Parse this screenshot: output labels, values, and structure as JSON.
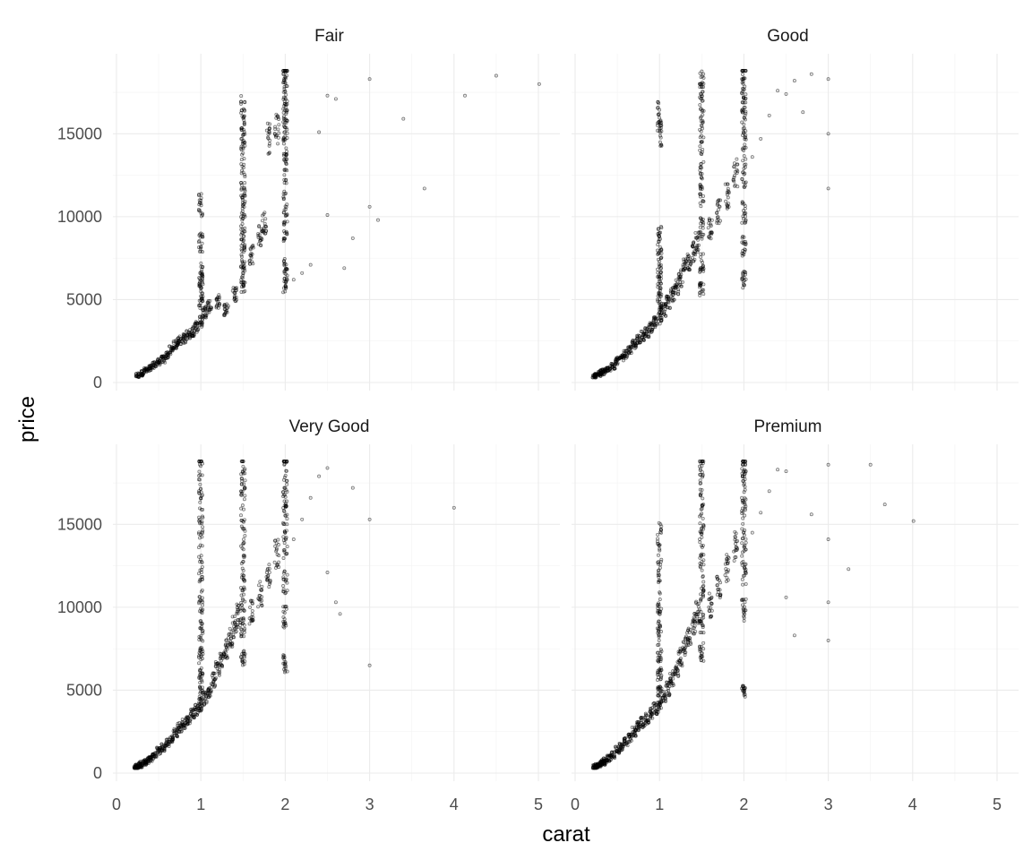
{
  "chart_data": {
    "type": "scatter",
    "xlabel": "carat",
    "ylabel": "price",
    "xlim": [
      0,
      5.25
    ],
    "ylim": [
      0,
      18900
    ],
    "x_ticks": [
      0,
      1,
      2,
      3,
      4,
      5
    ],
    "x_tick_labels": [
      "0",
      "1",
      "2",
      "3",
      "4",
      "5"
    ],
    "y_ticks": [
      0,
      5000,
      10000,
      15000
    ],
    "y_tick_labels": [
      "0",
      "5000",
      "10000",
      "15000"
    ],
    "grid": true,
    "facets": [
      {
        "title": "Fair",
        "points": [
          [
            0.25,
            420
          ],
          [
            0.3,
            560
          ],
          [
            0.35,
            720
          ],
          [
            0.4,
            880
          ],
          [
            0.45,
            1050
          ],
          [
            0.5,
            1250
          ],
          [
            0.55,
            1400
          ],
          [
            0.6,
            1650
          ],
          [
            0.65,
            1950
          ],
          [
            0.7,
            2300
          ],
          [
            0.75,
            2550
          ],
          [
            0.8,
            2650
          ],
          [
            0.85,
            2900
          ],
          [
            0.9,
            3100
          ],
          [
            0.95,
            3350
          ],
          [
            1.0,
            3700
          ],
          [
            1.0,
            4800
          ],
          [
            1.0,
            5800
          ],
          [
            1.0,
            6700
          ],
          [
            1.0,
            8500
          ],
          [
            1.0,
            10700
          ],
          [
            1.05,
            4300
          ],
          [
            1.1,
            4600
          ],
          [
            1.2,
            4900
          ],
          [
            1.3,
            4400
          ],
          [
            1.4,
            5300
          ],
          [
            1.5,
            5900
          ],
          [
            1.5,
            6900
          ],
          [
            1.5,
            8200
          ],
          [
            1.5,
            9400
          ],
          [
            1.5,
            10800
          ],
          [
            1.5,
            12000
          ],
          [
            1.5,
            13900
          ],
          [
            1.5,
            15500
          ],
          [
            1.5,
            16300
          ],
          [
            1.6,
            7700
          ],
          [
            1.7,
            8800
          ],
          [
            1.75,
            9600
          ],
          [
            1.8,
            14800
          ],
          [
            1.9,
            15400
          ],
          [
            2.0,
            5900
          ],
          [
            2.0,
            7000
          ],
          [
            2.0,
            9200
          ],
          [
            2.0,
            10800
          ],
          [
            2.0,
            12900
          ],
          [
            2.0,
            14200
          ],
          [
            2.0,
            15700
          ],
          [
            2.0,
            16700
          ],
          [
            2.0,
            17900
          ],
          [
            2.0,
            18600
          ],
          [
            2.1,
            6200
          ],
          [
            2.2,
            6600
          ],
          [
            2.3,
            7100
          ],
          [
            2.4,
            15100
          ],
          [
            2.5,
            10100
          ],
          [
            2.5,
            17300
          ],
          [
            2.6,
            17100
          ],
          [
            2.7,
            6900
          ],
          [
            2.8,
            8700
          ],
          [
            3.0,
            10600
          ],
          [
            3.0,
            18300
          ],
          [
            3.1,
            9800
          ],
          [
            3.4,
            15900
          ],
          [
            3.65,
            11700
          ],
          [
            4.13,
            17300
          ],
          [
            4.5,
            18500
          ],
          [
            5.01,
            18000
          ]
        ]
      },
      {
        "title": "Good",
        "points": [
          [
            0.23,
            360
          ],
          [
            0.25,
            420
          ],
          [
            0.3,
            540
          ],
          [
            0.32,
            620
          ],
          [
            0.35,
            700
          ],
          [
            0.4,
            850
          ],
          [
            0.45,
            1000
          ],
          [
            0.5,
            1300
          ],
          [
            0.55,
            1450
          ],
          [
            0.6,
            1700
          ],
          [
            0.65,
            1950
          ],
          [
            0.7,
            2300
          ],
          [
            0.75,
            2650
          ],
          [
            0.8,
            2800
          ],
          [
            0.85,
            3050
          ],
          [
            0.9,
            3300
          ],
          [
            0.95,
            3600
          ],
          [
            1.0,
            3900
          ],
          [
            1.0,
            4700
          ],
          [
            1.0,
            5600
          ],
          [
            1.0,
            6500
          ],
          [
            1.0,
            7500
          ],
          [
            1.0,
            8800
          ],
          [
            1.0,
            15200
          ],
          [
            1.0,
            16000
          ],
          [
            1.05,
            4400
          ],
          [
            1.1,
            4800
          ],
          [
            1.15,
            5300
          ],
          [
            1.2,
            5800
          ],
          [
            1.25,
            6300
          ],
          [
            1.3,
            6900
          ],
          [
            1.35,
            7300
          ],
          [
            1.4,
            7900
          ],
          [
            1.45,
            8500
          ],
          [
            1.5,
            5600
          ],
          [
            1.5,
            7200
          ],
          [
            1.5,
            9300
          ],
          [
            1.5,
            11200
          ],
          [
            1.5,
            13200
          ],
          [
            1.5,
            15000
          ],
          [
            1.5,
            17100
          ],
          [
            1.5,
            17600
          ],
          [
            1.6,
            9300
          ],
          [
            1.7,
            10300
          ],
          [
            1.8,
            11200
          ],
          [
            1.9,
            12600
          ],
          [
            2.0,
            6200
          ],
          [
            2.0,
            8200
          ],
          [
            2.0,
            10300
          ],
          [
            2.0,
            12600
          ],
          [
            2.0,
            14600
          ],
          [
            2.0,
            16100
          ],
          [
            2.0,
            17300
          ],
          [
            2.0,
            18500
          ],
          [
            2.1,
            13600
          ],
          [
            2.2,
            14700
          ],
          [
            2.3,
            16100
          ],
          [
            2.4,
            17600
          ],
          [
            2.5,
            17400
          ],
          [
            2.6,
            18200
          ],
          [
            2.7,
            16300
          ],
          [
            2.8,
            18600
          ],
          [
            3.0,
            11700
          ],
          [
            3.0,
            15000
          ],
          [
            3.0,
            18300
          ]
        ]
      },
      {
        "title": "Very Good",
        "points": [
          [
            0.23,
            340
          ],
          [
            0.25,
            400
          ],
          [
            0.28,
            470
          ],
          [
            0.3,
            550
          ],
          [
            0.33,
            640
          ],
          [
            0.36,
            750
          ],
          [
            0.4,
            880
          ],
          [
            0.45,
            1050
          ],
          [
            0.5,
            1350
          ],
          [
            0.55,
            1550
          ],
          [
            0.6,
            1800
          ],
          [
            0.65,
            2050
          ],
          [
            0.7,
            2450
          ],
          [
            0.75,
            2750
          ],
          [
            0.8,
            3000
          ],
          [
            0.85,
            3250
          ],
          [
            0.9,
            3550
          ],
          [
            0.95,
            3850
          ],
          [
            1.0,
            3950
          ],
          [
            1.0,
            4800
          ],
          [
            1.0,
            5900
          ],
          [
            1.0,
            7100
          ],
          [
            1.0,
            8600
          ],
          [
            1.0,
            10300
          ],
          [
            1.0,
            12400
          ],
          [
            1.0,
            14600
          ],
          [
            1.0,
            16200
          ],
          [
            1.0,
            18300
          ],
          [
            1.05,
            4500
          ],
          [
            1.1,
            5000
          ],
          [
            1.15,
            5600
          ],
          [
            1.2,
            6200
          ],
          [
            1.25,
            6900
          ],
          [
            1.3,
            7500
          ],
          [
            1.35,
            8100
          ],
          [
            1.4,
            8800
          ],
          [
            1.45,
            9500
          ],
          [
            1.5,
            7000
          ],
          [
            1.5,
            8700
          ],
          [
            1.5,
            10500
          ],
          [
            1.5,
            12400
          ],
          [
            1.5,
            14400
          ],
          [
            1.5,
            16500
          ],
          [
            1.5,
            18600
          ],
          [
            1.6,
            9700
          ],
          [
            1.7,
            10800
          ],
          [
            1.8,
            11900
          ],
          [
            1.9,
            13200
          ],
          [
            2.0,
            6600
          ],
          [
            2.0,
            9400
          ],
          [
            2.0,
            11600
          ],
          [
            2.0,
            13700
          ],
          [
            2.0,
            15600
          ],
          [
            2.0,
            17100
          ],
          [
            2.0,
            18700
          ],
          [
            2.1,
            14100
          ],
          [
            2.2,
            15300
          ],
          [
            2.3,
            16600
          ],
          [
            2.4,
            17900
          ],
          [
            2.5,
            12100
          ],
          [
            2.5,
            18400
          ],
          [
            2.6,
            10300
          ],
          [
            2.65,
            9600
          ],
          [
            2.8,
            17200
          ],
          [
            3.0,
            6500
          ],
          [
            3.0,
            15300
          ],
          [
            4.0,
            16000
          ]
        ]
      },
      {
        "title": "Premium",
        "points": [
          [
            0.23,
            350
          ],
          [
            0.25,
            410
          ],
          [
            0.28,
            480
          ],
          [
            0.3,
            560
          ],
          [
            0.33,
            650
          ],
          [
            0.36,
            760
          ],
          [
            0.4,
            900
          ],
          [
            0.45,
            1100
          ],
          [
            0.5,
            1400
          ],
          [
            0.55,
            1600
          ],
          [
            0.6,
            1900
          ],
          [
            0.65,
            2100
          ],
          [
            0.7,
            2500
          ],
          [
            0.75,
            2800
          ],
          [
            0.8,
            3050
          ],
          [
            0.85,
            3300
          ],
          [
            0.9,
            3600
          ],
          [
            0.95,
            3900
          ],
          [
            1.0,
            4000
          ],
          [
            1.0,
            4900
          ],
          [
            1.0,
            6000
          ],
          [
            1.0,
            7200
          ],
          [
            1.0,
            8600
          ],
          [
            1.0,
            10300
          ],
          [
            1.0,
            12300
          ],
          [
            1.0,
            14400
          ],
          [
            1.05,
            4600
          ],
          [
            1.1,
            5100
          ],
          [
            1.15,
            5700
          ],
          [
            1.2,
            6300
          ],
          [
            1.25,
            7000
          ],
          [
            1.3,
            7700
          ],
          [
            1.35,
            8300
          ],
          [
            1.4,
            9000
          ],
          [
            1.45,
            9700
          ],
          [
            1.5,
            7300
          ],
          [
            1.5,
            9100
          ],
          [
            1.5,
            11100
          ],
          [
            1.5,
            13100
          ],
          [
            1.5,
            15100
          ],
          [
            1.5,
            16900
          ],
          [
            1.5,
            18500
          ],
          [
            1.6,
            10100
          ],
          [
            1.7,
            11200
          ],
          [
            1.8,
            12400
          ],
          [
            1.9,
            13700
          ],
          [
            2.0,
            5000
          ],
          [
            2.0,
            9800
          ],
          [
            2.0,
            12000
          ],
          [
            2.0,
            14000
          ],
          [
            2.0,
            15900
          ],
          [
            2.0,
            17500
          ],
          [
            2.0,
            18700
          ],
          [
            2.1,
            14500
          ],
          [
            2.2,
            15700
          ],
          [
            2.3,
            17000
          ],
          [
            2.4,
            18300
          ],
          [
            2.5,
            18200
          ],
          [
            2.5,
            10600
          ],
          [
            2.6,
            8300
          ],
          [
            2.8,
            15600
          ],
          [
            3.0,
            8000
          ],
          [
            3.0,
            10300
          ],
          [
            3.0,
            14100
          ],
          [
            3.0,
            18600
          ],
          [
            3.24,
            12300
          ],
          [
            3.5,
            18600
          ],
          [
            3.67,
            16200
          ],
          [
            4.01,
            15200
          ]
        ]
      }
    ]
  }
}
